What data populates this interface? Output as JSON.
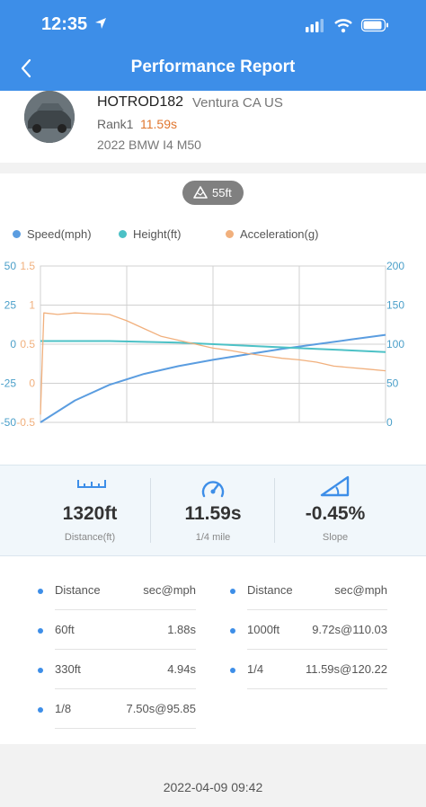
{
  "status_bar": {
    "time": "12:35"
  },
  "header": {
    "title": "Performance Report"
  },
  "profile": {
    "username": "HOTROD182",
    "location": "Ventura CA US",
    "rank_label": "Rank1",
    "rank_time": "11.59s",
    "car": "2022 BMW I4 M50"
  },
  "elevation": {
    "label": "55ft"
  },
  "legend": {
    "speed": "Speed(mph)",
    "height": "Height(ft)",
    "acceleration": "Acceleration(g)"
  },
  "colors": {
    "speed": "#5b9de0",
    "height": "#4cc1c6",
    "acceleration": "#f1b07d",
    "header": "#3d8ee8"
  },
  "chart_data": {
    "type": "line",
    "series": [
      {
        "name": "Speed(mph)",
        "axis": "speed",
        "x": [
          0,
          0.1,
          0.2,
          0.3,
          0.4,
          0.5,
          0.6,
          0.7,
          0.8,
          0.9,
          1.0
        ],
        "values": [
          0,
          28,
          48,
          62,
          72,
          80,
          87,
          94,
          100,
          106,
          112
        ]
      },
      {
        "name": "Height(ft)",
        "axis": "height",
        "x": [
          0,
          0.2,
          0.4,
          0.6,
          0.8,
          1.0
        ],
        "values": [
          2,
          2,
          1,
          -1,
          -3,
          -5
        ]
      },
      {
        "name": "Acceleration(g)",
        "axis": "acceleration",
        "x": [
          0,
          0.01,
          0.05,
          0.1,
          0.15,
          0.2,
          0.25,
          0.3,
          0.35,
          0.4,
          0.45,
          0.5,
          0.55,
          0.6,
          0.65,
          0.7,
          0.75,
          0.8,
          0.85,
          0.9,
          0.95,
          1.0
        ],
        "values": [
          -0.4,
          0.9,
          0.88,
          0.9,
          0.89,
          0.88,
          0.8,
          0.7,
          0.6,
          0.55,
          0.5,
          0.45,
          0.42,
          0.38,
          0.35,
          0.32,
          0.3,
          0.27,
          0.22,
          0.2,
          0.18,
          0.16
        ]
      }
    ],
    "axes": {
      "left_outer": {
        "ticks": [
          "50",
          "25",
          "0",
          "-25",
          "-50"
        ],
        "range": [
          -50,
          50
        ]
      },
      "left_inner": {
        "ticks": [
          "1.5",
          "1",
          "0.5",
          "0",
          "-0.5"
        ],
        "range": [
          -0.5,
          1.5
        ]
      },
      "right": {
        "ticks": [
          "200",
          "150",
          "100",
          "50",
          "0"
        ],
        "range": [
          0,
          200
        ]
      }
    },
    "grid": true
  },
  "stats": [
    {
      "value": "1320ft",
      "label": "Distance(ft)",
      "icon": "ruler-icon"
    },
    {
      "value": "11.59s",
      "label": "1/4 mile",
      "icon": "speedometer-icon"
    },
    {
      "value": "-0.45%",
      "label": "Slope",
      "icon": "slope-icon"
    }
  ],
  "splits": {
    "headers": {
      "distance": "Distance",
      "result": "sec@mph"
    },
    "left": [
      {
        "distance": "60ft",
        "result": "1.88s"
      },
      {
        "distance": "330ft",
        "result": "4.94s"
      },
      {
        "distance": "1/8",
        "result": "7.50s@95.85"
      }
    ],
    "right": [
      {
        "distance": "1000ft",
        "result": "9.72s@110.03"
      },
      {
        "distance": "1/4",
        "result": "11.59s@120.22"
      }
    ]
  },
  "footer": {
    "date": "2022-04-09 09:42"
  }
}
